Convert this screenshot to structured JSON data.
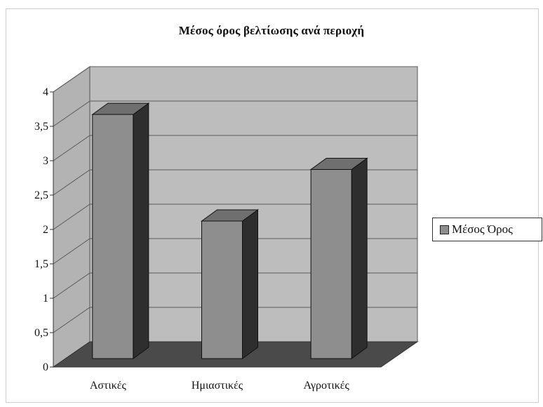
{
  "chart_data": {
    "type": "bar",
    "title": "Μέσος όρος βελτίωσης ανά περιοχή",
    "categories": [
      "Αστικές",
      "Ημιαστικές",
      "Αγροτικές"
    ],
    "series": [
      {
        "name": "Μέσος Όρος",
        "values": [
          3.55,
          2.0,
          2.75
        ],
        "color": "#8e8e8e"
      }
    ],
    "y_ticks": [
      "0",
      "0,5",
      "1",
      "1,5",
      "2",
      "2,5",
      "3",
      "3,5",
      "4"
    ],
    "ylim": [
      0,
      4
    ],
    "grid": true,
    "legend_position": "right",
    "style": "3d-column"
  }
}
